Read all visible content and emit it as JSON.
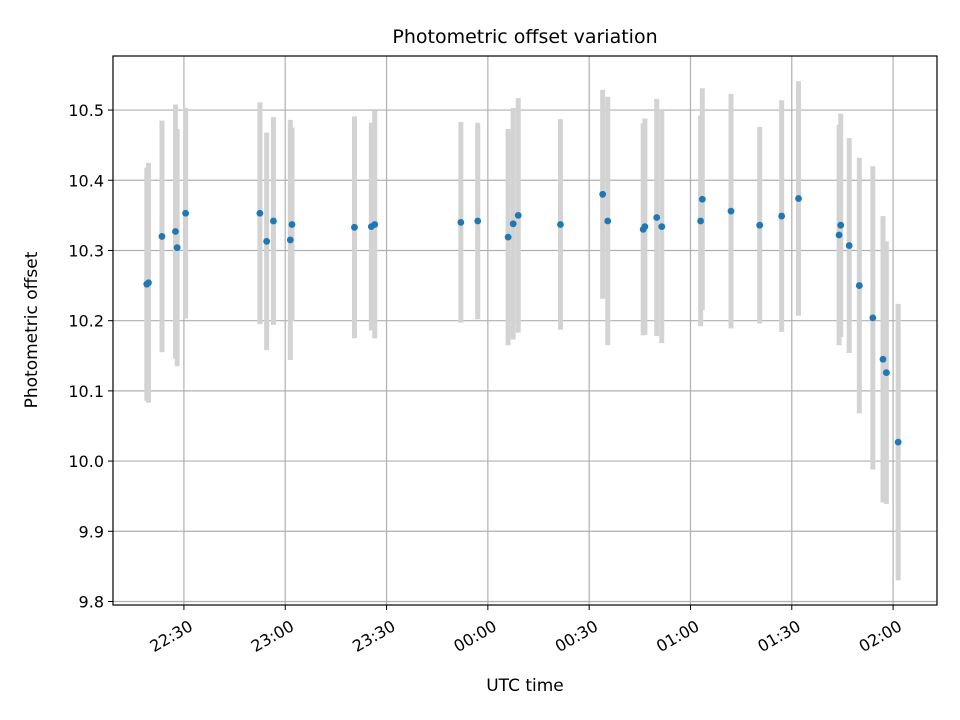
{
  "chart_data": {
    "type": "scatter",
    "title": "Photometric offset variation",
    "xlabel": "UTC time",
    "ylabel": "Photometric offset",
    "x_axis_type": "time",
    "xlim": [
      "22:09",
      "02:13"
    ],
    "ylim": [
      9.795,
      10.577
    ],
    "grid": true,
    "x_ticks": [
      {
        "time": "22:30",
        "label": "22:30"
      },
      {
        "time": "23:00",
        "label": "23:00"
      },
      {
        "time": "23:30",
        "label": "23:30"
      },
      {
        "time": "00:00",
        "label": "00:00"
      },
      {
        "time": "00:30",
        "label": "00:30"
      },
      {
        "time": "01:00",
        "label": "01:00"
      },
      {
        "time": "01:30",
        "label": "01:30"
      },
      {
        "time": "02:00",
        "label": "02:00"
      }
    ],
    "y_ticks": [
      {
        "value": 9.8,
        "label": "9.8"
      },
      {
        "value": 9.9,
        "label": "9.9"
      },
      {
        "value": 10.0,
        "label": "10.0"
      },
      {
        "value": 10.1,
        "label": "10.1"
      },
      {
        "value": 10.2,
        "label": "10.2"
      },
      {
        "value": 10.3,
        "label": "10.3"
      },
      {
        "value": 10.4,
        "label": "10.4"
      },
      {
        "value": 10.5,
        "label": "10.5"
      }
    ],
    "point_color": "#1f77b4",
    "errorbar_color": "#d3d3d3",
    "points": [
      {
        "x": "22:19",
        "y": 10.252,
        "err": 0.166
      },
      {
        "x": "22:19.5",
        "y": 10.254,
        "err": 0.171
      },
      {
        "x": "22:23.5",
        "y": 10.32,
        "err": 0.165
      },
      {
        "x": "22:27.5",
        "y": 10.327,
        "err": 0.181
      },
      {
        "x": "22:28",
        "y": 10.304,
        "err": 0.169
      },
      {
        "x": "22:30.5",
        "y": 10.353,
        "err": 0.15
      },
      {
        "x": "22:52.5",
        "y": 10.353,
        "err": 0.158
      },
      {
        "x": "22:54.5",
        "y": 10.313,
        "err": 0.155
      },
      {
        "x": "22:56.5",
        "y": 10.342,
        "err": 0.148
      },
      {
        "x": "23:01.5",
        "y": 10.315,
        "err": 0.171
      },
      {
        "x": "23:02",
        "y": 10.337,
        "err": 0.138
      },
      {
        "x": "23:20.5",
        "y": 10.333,
        "err": 0.158
      },
      {
        "x": "23:25.5",
        "y": 10.334,
        "err": 0.148
      },
      {
        "x": "23:26.5",
        "y": 10.337,
        "err": 0.162
      },
      {
        "x": "23:52",
        "y": 10.34,
        "err": 0.143
      },
      {
        "x": "23:57",
        "y": 10.342,
        "err": 0.14
      },
      {
        "x": "00:06",
        "y": 10.319,
        "err": 0.154
      },
      {
        "x": "00:07.5",
        "y": 10.338,
        "err": 0.165
      },
      {
        "x": "00:09",
        "y": 10.35,
        "err": 0.167
      },
      {
        "x": "00:21.5",
        "y": 10.337,
        "err": 0.15
      },
      {
        "x": "00:34",
        "y": 10.38,
        "err": 0.149
      },
      {
        "x": "00:35.5",
        "y": 10.342,
        "err": 0.177
      },
      {
        "x": "00:46",
        "y": 10.33,
        "err": 0.151
      },
      {
        "x": "00:46.5",
        "y": 10.334,
        "err": 0.154
      },
      {
        "x": "00:50",
        "y": 10.347,
        "err": 0.169
      },
      {
        "x": "00:51.5",
        "y": 10.334,
        "err": 0.166
      },
      {
        "x": "01:03",
        "y": 10.342,
        "err": 0.15
      },
      {
        "x": "01:03.5",
        "y": 10.373,
        "err": 0.158
      },
      {
        "x": "01:12",
        "y": 10.356,
        "err": 0.167
      },
      {
        "x": "01:20.5",
        "y": 10.336,
        "err": 0.14
      },
      {
        "x": "01:27",
        "y": 10.349,
        "err": 0.165
      },
      {
        "x": "01:32",
        "y": 10.374,
        "err": 0.167
      },
      {
        "x": "01:44",
        "y": 10.322,
        "err": 0.157
      },
      {
        "x": "01:44.5",
        "y": 10.336,
        "err": 0.159
      },
      {
        "x": "01:47",
        "y": 10.307,
        "err": 0.153
      },
      {
        "x": "01:50",
        "y": 10.25,
        "err": 0.182
      },
      {
        "x": "01:54",
        "y": 10.204,
        "err": 0.216
      },
      {
        "x": "01:57",
        "y": 10.145,
        "err": 0.204
      },
      {
        "x": "01:58",
        "y": 10.126,
        "err": 0.187
      },
      {
        "x": "02:01.5",
        "y": 10.027,
        "err": 0.197
      }
    ]
  }
}
